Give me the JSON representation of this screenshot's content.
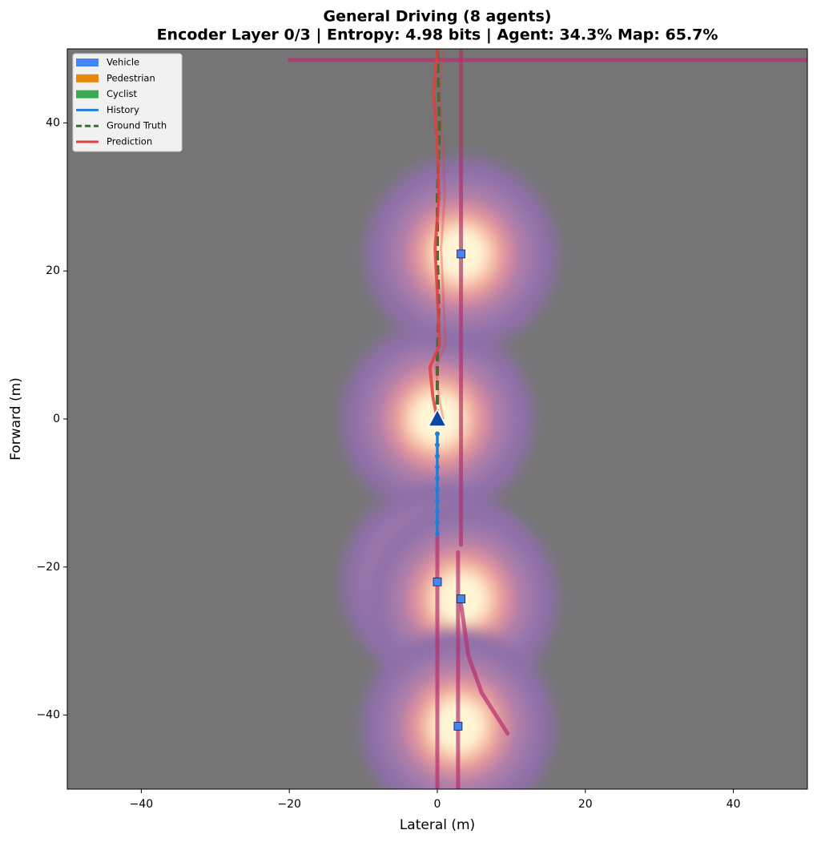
{
  "chart_data": {
    "type": "trajectory",
    "title": "General Driving (8 agents)",
    "subtitle": "Encoder Layer 0/3  |  Entropy: 4.98 bits  |  Agent: 34.3%  Map: 65.7%",
    "x_label": "Lateral (m)",
    "y_label": "Forward (m)",
    "xlim": [
      -50,
      50
    ],
    "ylim": [
      -50,
      50
    ],
    "xticks": [
      {
        "value": -40,
        "label": "−40"
      },
      {
        "value": -20,
        "label": "−20"
      },
      0,
      20,
      40
    ],
    "yticks": [
      {
        "value": -40,
        "label": "−40"
      },
      {
        "value": -20,
        "label": "−20"
      },
      0,
      20,
      40
    ],
    "legend_corner": "upper left",
    "legend": [
      {
        "name": "Vehicle",
        "kind": "patch",
        "color": "#4285f4"
      },
      {
        "name": "Pedestrian",
        "kind": "patch",
        "color": "#e8870a"
      },
      {
        "name": "Cyclist",
        "kind": "patch",
        "color": "#3aaa55"
      },
      {
        "name": "History",
        "kind": "line",
        "color": "#1f7fd6"
      },
      {
        "name": "Ground Truth",
        "kind": "dashed",
        "color": "#3a6e36"
      },
      {
        "name": "Prediction",
        "kind": "line",
        "color": "#e04040"
      }
    ],
    "ego": {
      "x": 0,
      "y": 0,
      "color": "#0d47a1"
    },
    "agents": {
      "color": "#4285f4",
      "x": [
        3.2,
        0,
        3.2,
        2.8
      ],
      "y": [
        22.3,
        -22,
        -24.3,
        -41.5
      ]
    },
    "lanes": [
      {
        "x": [
          3.2,
          3.2
        ],
        "y": [
          -17,
          50
        ]
      },
      {
        "x": [
          0,
          0
        ],
        "y": [
          -50,
          -16
        ]
      },
      {
        "x": [
          2.8,
          2.8
        ],
        "y": [
          -50,
          -18
        ]
      },
      {
        "x": [
          3.2,
          4.2,
          6,
          9.5
        ],
        "y": [
          -25,
          -32,
          -37,
          -42.5
        ]
      },
      {
        "x": [
          -20,
          50
        ],
        "y": [
          48.5,
          48.5
        ]
      }
    ],
    "history": {
      "color": "#1f7fd6",
      "x": [
        0,
        0,
        0,
        0,
        0,
        0,
        0,
        0,
        0,
        0
      ],
      "y": [
        -15.5,
        -14,
        -12.5,
        -11,
        -9.5,
        -8,
        -6.5,
        -5,
        -3.5,
        -2
      ]
    },
    "ground_truth": {
      "color": "#3a6e36",
      "x": [
        0,
        0,
        0.2,
        0,
        0,
        0.3,
        0
      ],
      "y": [
        0,
        8,
        15,
        22,
        30,
        40,
        50
      ]
    },
    "prediction": {
      "color": "#e04040",
      "x": [
        0,
        -0.6,
        -1,
        0.3,
        0,
        -0.3,
        0.2,
        0,
        -0.5,
        0
      ],
      "y": [
        0,
        3,
        7,
        10,
        17,
        23,
        30,
        37,
        44,
        50
      ]
    }
  }
}
